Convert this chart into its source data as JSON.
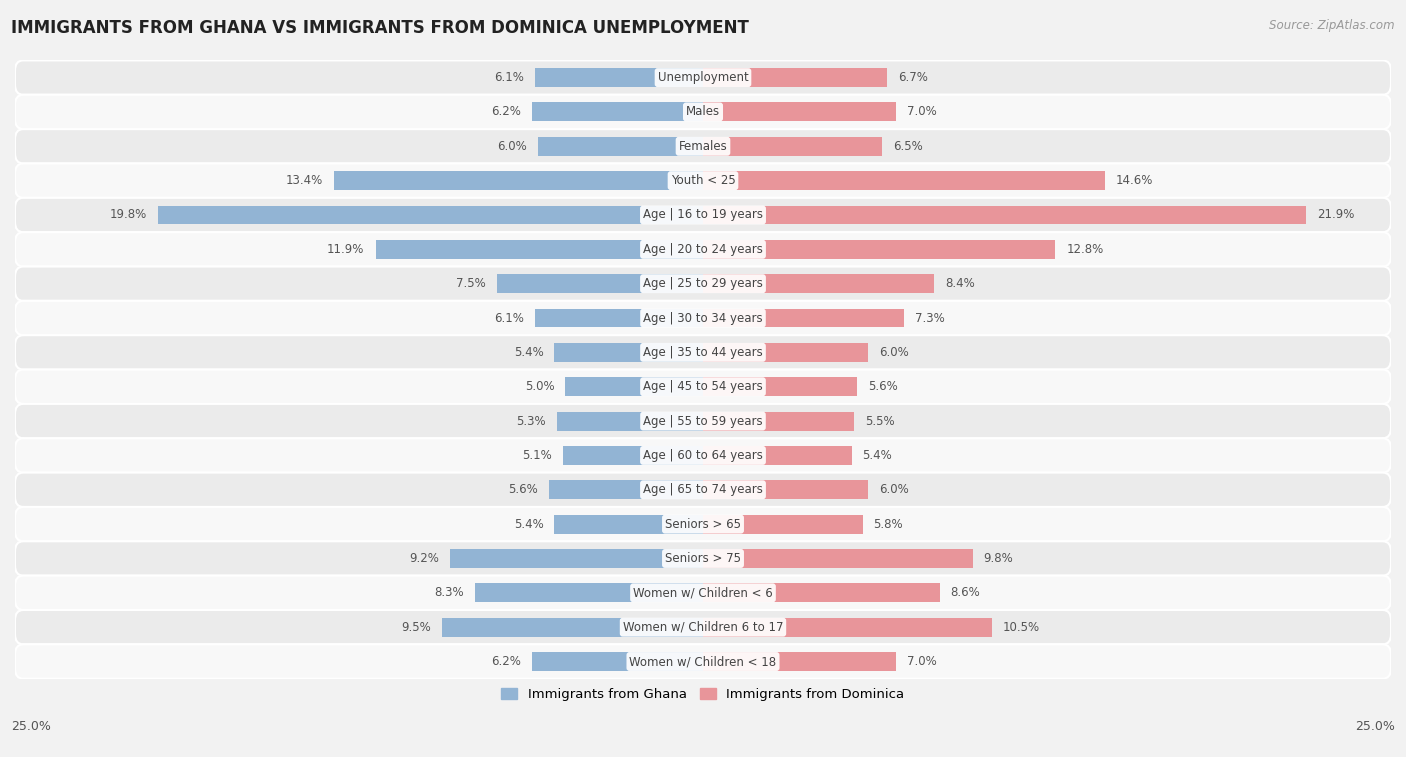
{
  "title": "IMMIGRANTS FROM GHANA VS IMMIGRANTS FROM DOMINICA UNEMPLOYMENT",
  "source": "Source: ZipAtlas.com",
  "categories": [
    "Unemployment",
    "Males",
    "Females",
    "Youth < 25",
    "Age | 16 to 19 years",
    "Age | 20 to 24 years",
    "Age | 25 to 29 years",
    "Age | 30 to 34 years",
    "Age | 35 to 44 years",
    "Age | 45 to 54 years",
    "Age | 55 to 59 years",
    "Age | 60 to 64 years",
    "Age | 65 to 74 years",
    "Seniors > 65",
    "Seniors > 75",
    "Women w/ Children < 6",
    "Women w/ Children 6 to 17",
    "Women w/ Children < 18"
  ],
  "ghana_values": [
    6.1,
    6.2,
    6.0,
    13.4,
    19.8,
    11.9,
    7.5,
    6.1,
    5.4,
    5.0,
    5.3,
    5.1,
    5.6,
    5.4,
    9.2,
    8.3,
    9.5,
    6.2
  ],
  "dominica_values": [
    6.7,
    7.0,
    6.5,
    14.6,
    21.9,
    12.8,
    8.4,
    7.3,
    6.0,
    5.6,
    5.5,
    5.4,
    6.0,
    5.8,
    9.8,
    8.6,
    10.5,
    7.0
  ],
  "ghana_color": "#92b4d4",
  "dominica_color": "#e8959a",
  "axis_limit": 25.0,
  "bg_color": "#f2f2f2",
  "row_bg_even": "#ebebeb",
  "row_bg_odd": "#f8f8f8",
  "title_fontsize": 12,
  "source_fontsize": 8.5,
  "legend_fontsize": 9.5,
  "bar_height": 0.55,
  "value_fontsize": 8.5,
  "category_fontsize": 8.5
}
